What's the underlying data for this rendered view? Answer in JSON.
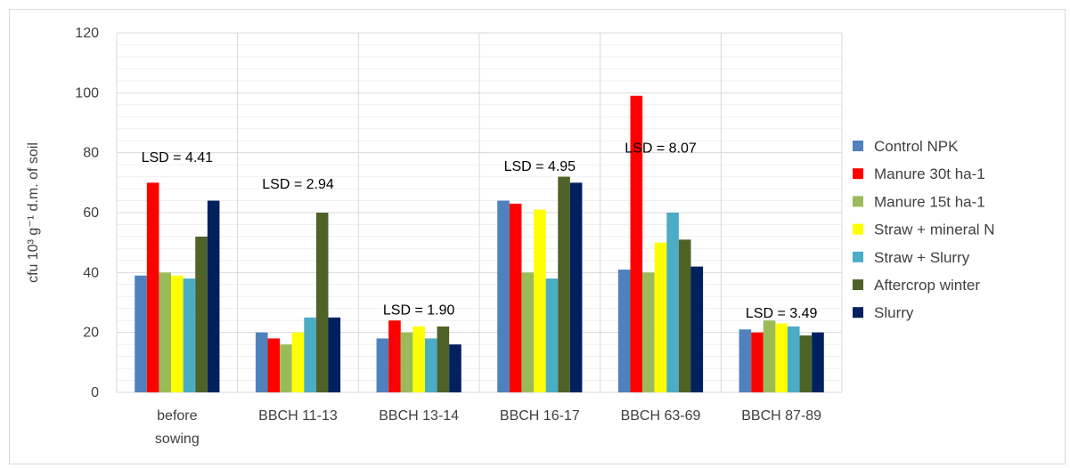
{
  "chart_data": {
    "type": "bar",
    "title": "",
    "xlabel": "",
    "ylabel": "cfu 10³ g⁻¹ d.m. of soil",
    "ylim": [
      0,
      120
    ],
    "yticks": [
      0,
      20,
      40,
      60,
      80,
      100,
      120
    ],
    "grid": true,
    "legend_position": "right",
    "categories": [
      [
        "before",
        "sowing"
      ],
      [
        "BBCH 11-13"
      ],
      [
        "BBCH 13-14"
      ],
      [
        "BBCH 16-17"
      ],
      [
        "BBCH 63-69"
      ],
      [
        "BBCH 87-89"
      ]
    ],
    "series": [
      {
        "name": "Control NPK",
        "color": "#4f81bd",
        "values": [
          39,
          20,
          18,
          64,
          41,
          21
        ]
      },
      {
        "name": "Manure  30t ha-1",
        "color": "#ff0000",
        "values": [
          70,
          18,
          24,
          63,
          99,
          20
        ]
      },
      {
        "name": "Manure 15t ha-1",
        "color": "#9bbb59",
        "values": [
          40,
          16,
          20,
          40,
          40,
          24
        ]
      },
      {
        "name": "Straw + mineral N",
        "color": "#ffff00",
        "values": [
          39,
          20,
          22,
          61,
          50,
          23
        ]
      },
      {
        "name": "Straw + Slurry",
        "color": "#4bacc6",
        "values": [
          38,
          25,
          18,
          38,
          60,
          22
        ]
      },
      {
        "name": "Aftercrop winter",
        "color": "#4f6228",
        "values": [
          52,
          60,
          22,
          72,
          51,
          19
        ]
      },
      {
        "name": "Slurry",
        "color": "#002060",
        "values": [
          64,
          25,
          16,
          70,
          42,
          20
        ]
      }
    ],
    "annotations": [
      {
        "text": "LSD = 4.41",
        "category": 0,
        "y": 77
      },
      {
        "text": "LSD = 2.94",
        "category": 1,
        "y": 68
      },
      {
        "text": "LSD = 1.90",
        "category": 2,
        "y": 26
      },
      {
        "text": "LSD = 4.95",
        "category": 3,
        "y": 74
      },
      {
        "text": "LSD = 8.07",
        "category": 4,
        "y": 80
      },
      {
        "text": "LSD = 3.49",
        "category": 5,
        "y": 25
      }
    ]
  }
}
